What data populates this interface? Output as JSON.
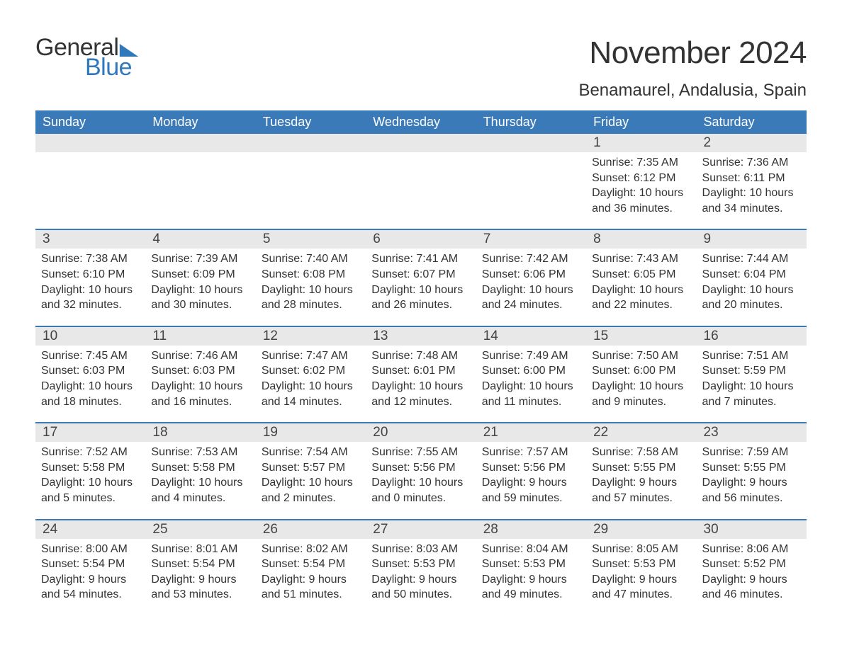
{
  "logo": {
    "text_general": "General",
    "text_blue": "Blue"
  },
  "title": "November 2024",
  "location": "Benamaurel, Andalusia, Spain",
  "colors": {
    "header_bg": "#3a7ab8",
    "header_text": "#ffffff",
    "daynum_bg": "#e8e8e8",
    "week_border": "#3a7ab8",
    "logo_blue": "#2f78bc",
    "body_text": "#333333",
    "background": "#ffffff"
  },
  "typography": {
    "month_title_fontsize": 44,
    "location_fontsize": 24,
    "dow_fontsize": 18,
    "daynum_fontsize": 19,
    "body_fontsize": 16,
    "logo_fontsize": 34
  },
  "days_of_week": [
    "Sunday",
    "Monday",
    "Tuesday",
    "Wednesday",
    "Thursday",
    "Friday",
    "Saturday"
  ],
  "weeks": [
    [
      null,
      null,
      null,
      null,
      null,
      {
        "n": "1",
        "sunrise": "Sunrise: 7:35 AM",
        "sunset": "Sunset: 6:12 PM",
        "day1": "Daylight: 10 hours",
        "day2": "and 36 minutes."
      },
      {
        "n": "2",
        "sunrise": "Sunrise: 7:36 AM",
        "sunset": "Sunset: 6:11 PM",
        "day1": "Daylight: 10 hours",
        "day2": "and 34 minutes."
      }
    ],
    [
      {
        "n": "3",
        "sunrise": "Sunrise: 7:38 AM",
        "sunset": "Sunset: 6:10 PM",
        "day1": "Daylight: 10 hours",
        "day2": "and 32 minutes."
      },
      {
        "n": "4",
        "sunrise": "Sunrise: 7:39 AM",
        "sunset": "Sunset: 6:09 PM",
        "day1": "Daylight: 10 hours",
        "day2": "and 30 minutes."
      },
      {
        "n": "5",
        "sunrise": "Sunrise: 7:40 AM",
        "sunset": "Sunset: 6:08 PM",
        "day1": "Daylight: 10 hours",
        "day2": "and 28 minutes."
      },
      {
        "n": "6",
        "sunrise": "Sunrise: 7:41 AM",
        "sunset": "Sunset: 6:07 PM",
        "day1": "Daylight: 10 hours",
        "day2": "and 26 minutes."
      },
      {
        "n": "7",
        "sunrise": "Sunrise: 7:42 AM",
        "sunset": "Sunset: 6:06 PM",
        "day1": "Daylight: 10 hours",
        "day2": "and 24 minutes."
      },
      {
        "n": "8",
        "sunrise": "Sunrise: 7:43 AM",
        "sunset": "Sunset: 6:05 PM",
        "day1": "Daylight: 10 hours",
        "day2": "and 22 minutes."
      },
      {
        "n": "9",
        "sunrise": "Sunrise: 7:44 AM",
        "sunset": "Sunset: 6:04 PM",
        "day1": "Daylight: 10 hours",
        "day2": "and 20 minutes."
      }
    ],
    [
      {
        "n": "10",
        "sunrise": "Sunrise: 7:45 AM",
        "sunset": "Sunset: 6:03 PM",
        "day1": "Daylight: 10 hours",
        "day2": "and 18 minutes."
      },
      {
        "n": "11",
        "sunrise": "Sunrise: 7:46 AM",
        "sunset": "Sunset: 6:03 PM",
        "day1": "Daylight: 10 hours",
        "day2": "and 16 minutes."
      },
      {
        "n": "12",
        "sunrise": "Sunrise: 7:47 AM",
        "sunset": "Sunset: 6:02 PM",
        "day1": "Daylight: 10 hours",
        "day2": "and 14 minutes."
      },
      {
        "n": "13",
        "sunrise": "Sunrise: 7:48 AM",
        "sunset": "Sunset: 6:01 PM",
        "day1": "Daylight: 10 hours",
        "day2": "and 12 minutes."
      },
      {
        "n": "14",
        "sunrise": "Sunrise: 7:49 AM",
        "sunset": "Sunset: 6:00 PM",
        "day1": "Daylight: 10 hours",
        "day2": "and 11 minutes."
      },
      {
        "n": "15",
        "sunrise": "Sunrise: 7:50 AM",
        "sunset": "Sunset: 6:00 PM",
        "day1": "Daylight: 10 hours",
        "day2": "and 9 minutes."
      },
      {
        "n": "16",
        "sunrise": "Sunrise: 7:51 AM",
        "sunset": "Sunset: 5:59 PM",
        "day1": "Daylight: 10 hours",
        "day2": "and 7 minutes."
      }
    ],
    [
      {
        "n": "17",
        "sunrise": "Sunrise: 7:52 AM",
        "sunset": "Sunset: 5:58 PM",
        "day1": "Daylight: 10 hours",
        "day2": "and 5 minutes."
      },
      {
        "n": "18",
        "sunrise": "Sunrise: 7:53 AM",
        "sunset": "Sunset: 5:58 PM",
        "day1": "Daylight: 10 hours",
        "day2": "and 4 minutes."
      },
      {
        "n": "19",
        "sunrise": "Sunrise: 7:54 AM",
        "sunset": "Sunset: 5:57 PM",
        "day1": "Daylight: 10 hours",
        "day2": "and 2 minutes."
      },
      {
        "n": "20",
        "sunrise": "Sunrise: 7:55 AM",
        "sunset": "Sunset: 5:56 PM",
        "day1": "Daylight: 10 hours",
        "day2": "and 0 minutes."
      },
      {
        "n": "21",
        "sunrise": "Sunrise: 7:57 AM",
        "sunset": "Sunset: 5:56 PM",
        "day1": "Daylight: 9 hours",
        "day2": "and 59 minutes."
      },
      {
        "n": "22",
        "sunrise": "Sunrise: 7:58 AM",
        "sunset": "Sunset: 5:55 PM",
        "day1": "Daylight: 9 hours",
        "day2": "and 57 minutes."
      },
      {
        "n": "23",
        "sunrise": "Sunrise: 7:59 AM",
        "sunset": "Sunset: 5:55 PM",
        "day1": "Daylight: 9 hours",
        "day2": "and 56 minutes."
      }
    ],
    [
      {
        "n": "24",
        "sunrise": "Sunrise: 8:00 AM",
        "sunset": "Sunset: 5:54 PM",
        "day1": "Daylight: 9 hours",
        "day2": "and 54 minutes."
      },
      {
        "n": "25",
        "sunrise": "Sunrise: 8:01 AM",
        "sunset": "Sunset: 5:54 PM",
        "day1": "Daylight: 9 hours",
        "day2": "and 53 minutes."
      },
      {
        "n": "26",
        "sunrise": "Sunrise: 8:02 AM",
        "sunset": "Sunset: 5:54 PM",
        "day1": "Daylight: 9 hours",
        "day2": "and 51 minutes."
      },
      {
        "n": "27",
        "sunrise": "Sunrise: 8:03 AM",
        "sunset": "Sunset: 5:53 PM",
        "day1": "Daylight: 9 hours",
        "day2": "and 50 minutes."
      },
      {
        "n": "28",
        "sunrise": "Sunrise: 8:04 AM",
        "sunset": "Sunset: 5:53 PM",
        "day1": "Daylight: 9 hours",
        "day2": "and 49 minutes."
      },
      {
        "n": "29",
        "sunrise": "Sunrise: 8:05 AM",
        "sunset": "Sunset: 5:53 PM",
        "day1": "Daylight: 9 hours",
        "day2": "and 47 minutes."
      },
      {
        "n": "30",
        "sunrise": "Sunrise: 8:06 AM",
        "sunset": "Sunset: 5:52 PM",
        "day1": "Daylight: 9 hours",
        "day2": "and 46 minutes."
      }
    ]
  ]
}
